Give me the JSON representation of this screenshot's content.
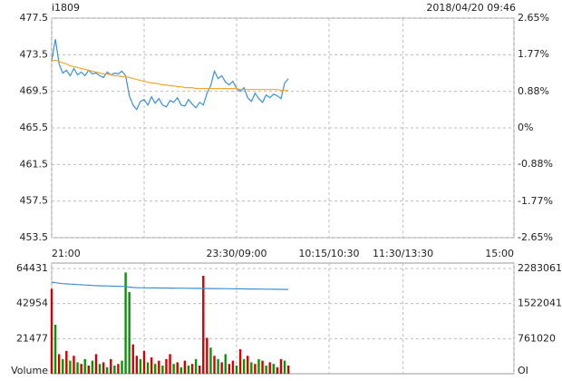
{
  "chart_data": [
    {
      "type": "line",
      "title": "i1809",
      "subtitle": "2018/04/20 09:46",
      "x": [
        0,
        3,
        6,
        9,
        12,
        15,
        18,
        21,
        24,
        27,
        30,
        33,
        36,
        39,
        42,
        45,
        48,
        51,
        54,
        57,
        60,
        63,
        66,
        69,
        72,
        75,
        78,
        81,
        84,
        87,
        90,
        93,
        96,
        99,
        102,
        105,
        108,
        111,
        114,
        117,
        120,
        123,
        126,
        129,
        132,
        135,
        138,
        141,
        144,
        147,
        150,
        153,
        156,
        159,
        162,
        165,
        168,
        171,
        174,
        177,
        180,
        183,
        186,
        189,
        192
      ],
      "xlim": [
        0,
        375
      ],
      "xticks": [
        {
          "value": 0,
          "label": "21:00"
        },
        {
          "value": 150,
          "label": "23:30/09:00"
        },
        {
          "value": 225,
          "label": "10:15/10:30"
        },
        {
          "value": 285,
          "label": "11:30/13:30"
        },
        {
          "value": 375,
          "label": "15:00"
        }
      ],
      "ylim": [
        453.5,
        477.5
      ],
      "yticks": [
        477.5,
        473.5,
        469.5,
        465.5,
        461.5,
        457.5,
        453.5
      ],
      "y2lim": [
        -2.65,
        2.65
      ],
      "y2ticks": [
        {
          "value": 2.65,
          "label": "2.65%"
        },
        {
          "value": 1.77,
          "label": "1.77%"
        },
        {
          "value": 0.88,
          "label": "0.88%"
        },
        {
          "value": 0,
          "label": "0%"
        },
        {
          "value": -0.88,
          "label": "-0.88%"
        },
        {
          "value": -1.77,
          "label": "-1.77%"
        },
        {
          "value": -2.65,
          "label": "-2.65%"
        }
      ],
      "up_color": "#cc0000",
      "down_color": "#008000",
      "grid": true,
      "series": [
        {
          "color": "#3b8fd6",
          "values": [
            472.8,
            475.2,
            472.5,
            471.5,
            471.8,
            471.2,
            472.0,
            471.3,
            471.6,
            471.2,
            471.8,
            471.4,
            471.5,
            471.2,
            471.0,
            471.6,
            471.3,
            471.5,
            471.4,
            471.7,
            471.2,
            469.0,
            468.0,
            467.5,
            468.4,
            468.6,
            468.0,
            468.9,
            468.2,
            468.7,
            468.0,
            467.8,
            468.5,
            468.3,
            468.8,
            468.0,
            467.9,
            468.6,
            468.1,
            467.7,
            468.3,
            468.0,
            469.3,
            470.1,
            471.7,
            470.9,
            471.2,
            470.5,
            470.2,
            470.6,
            469.8,
            469.5,
            469.9,
            468.8,
            468.4,
            469.3,
            468.7,
            468.3,
            469.1,
            468.8,
            469.2,
            469.0,
            468.7,
            470.4,
            470.9
          ]
        },
        {
          "color": "#f0a830",
          "values": [
            472.8,
            472.9,
            472.8,
            472.6,
            472.5,
            472.3,
            472.2,
            472.1,
            472.0,
            471.9,
            471.8,
            471.7,
            471.6,
            471.5,
            471.4,
            471.4,
            471.3,
            471.2,
            471.2,
            471.1,
            471.1,
            471.0,
            470.9,
            470.8,
            470.7,
            470.6,
            470.5,
            470.4,
            470.4,
            470.3,
            470.2,
            470.2,
            470.1,
            470.1,
            470.0,
            470.0,
            469.9,
            469.9,
            469.9,
            469.8,
            469.8,
            469.8,
            469.8,
            469.8,
            469.8,
            469.8,
            469.8,
            469.8,
            469.8,
            469.8,
            469.8,
            469.7,
            469.7,
            469.7,
            469.7,
            469.7,
            469.7,
            469.7,
            469.7,
            469.7,
            469.7,
            469.7,
            469.6,
            469.6,
            469.6
          ]
        }
      ]
    },
    {
      "type": "bar",
      "y_label": "Volume",
      "y2_label": "OI",
      "ylim": [
        0,
        64431
      ],
      "yticks": [
        21477,
        42954,
        64431
      ],
      "y2lim": [
        0,
        2283061
      ],
      "y2ticks": [
        761020,
        1522041,
        2283061
      ],
      "series": [
        {
          "values": [
            52000,
            30000,
            12000,
            9000,
            14000,
            8000,
            11000,
            7000,
            6000,
            9000,
            5000,
            8000,
            12000,
            6000,
            7000,
            4000,
            9000,
            5000,
            6000,
            8000,
            62000,
            50000,
            18000,
            11000,
            9000,
            14000,
            7000,
            10000,
            6000,
            8000,
            5000,
            9000,
            12000,
            6000,
            7000,
            4000,
            8000,
            5000,
            6000,
            9000,
            5000,
            60000,
            22000,
            16000,
            11000,
            9000,
            7000,
            12000,
            6000,
            8000,
            5000,
            15000,
            9000,
            11000,
            7000,
            6000,
            9000,
            8000,
            5000,
            7000,
            6000,
            4000,
            9000,
            8000,
            5000
          ],
          "colors": [
            "#d40000",
            "#009900",
            "#d40000",
            "#009900",
            "#d40000",
            "#009900",
            "#d40000",
            "#009900",
            "#d40000",
            "#009900",
            "#d40000",
            "#009900",
            "#d40000",
            "#009900",
            "#d40000",
            "#009900",
            "#d40000",
            "#009900",
            "#d40000",
            "#009900",
            "#009900",
            "#009900",
            "#d40000",
            "#d40000",
            "#009900",
            "#d40000",
            "#009900",
            "#d40000",
            "#009900",
            "#d40000",
            "#009900",
            "#d40000",
            "#d40000",
            "#009900",
            "#d40000",
            "#009900",
            "#d40000",
            "#009900",
            "#d40000",
            "#009900",
            "#d40000",
            "#d40000",
            "#d40000",
            "#009900",
            "#d40000",
            "#009900",
            "#d40000",
            "#009900",
            "#d40000",
            "#d40000",
            "#009900",
            "#d40000",
            "#009900",
            "#d40000",
            "#009900",
            "#d40000",
            "#009900",
            "#d40000",
            "#009900",
            "#d40000",
            "#009900",
            "#d40000",
            "#d40000",
            "#009900",
            "#d40000"
          ]
        },
        {
          "axis": "y2",
          "color": "#3b8fd6",
          "values": [
            1985000,
            1975000,
            1965000,
            1955000,
            1950000,
            1945000,
            1940000,
            1935000,
            1930000,
            1925000,
            1920000,
            1915000,
            1912000,
            1910000,
            1908000,
            1905000,
            1903000,
            1900000,
            1898000,
            1895000,
            1893000,
            1880000,
            1872000,
            1868000,
            1865000,
            1864000,
            1863000,
            1862000,
            1861000,
            1860000,
            1860000,
            1859000,
            1858000,
            1857000,
            1856000,
            1856000,
            1855000,
            1854000,
            1853000,
            1852000,
            1852000,
            1851000,
            1850000,
            1849000,
            1848000,
            1848000,
            1847000,
            1846000,
            1845000,
            1844000,
            1843000,
            1842000,
            1841000,
            1840000,
            1839000,
            1838000,
            1837000,
            1836000,
            1835000,
            1834000,
            1833000,
            1832000,
            1831000,
            1830000,
            1829000
          ]
        }
      ]
    }
  ]
}
